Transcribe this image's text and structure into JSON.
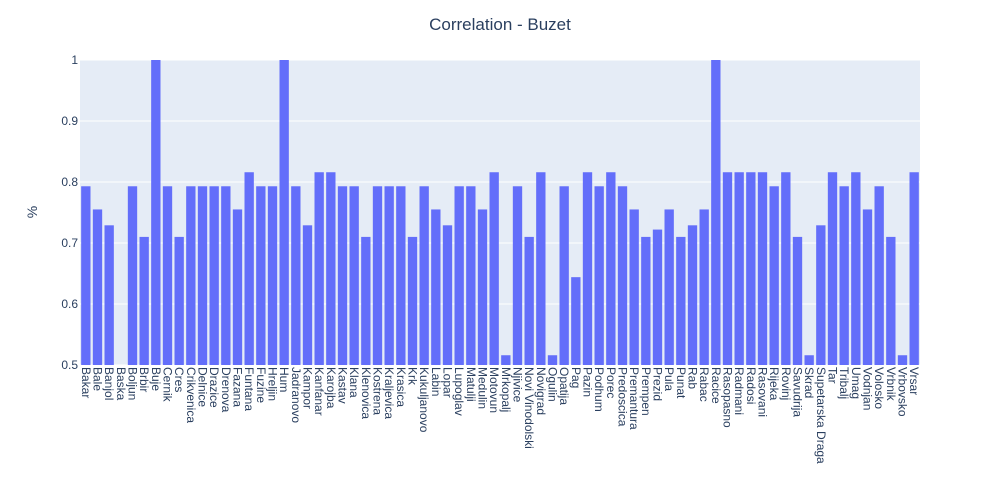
{
  "chart_data": {
    "type": "bar",
    "title": "Correlation - Buzet",
    "xlabel": "",
    "ylabel": "%",
    "ylim": [
      0.5,
      1.0
    ],
    "yticks": [
      "0.5",
      "0.6",
      "0.7",
      "0.8",
      "0.9",
      "1"
    ],
    "grid": true,
    "bar_color": "#636efa",
    "plot_bg": "#e5ecf6",
    "categories": [
      "Bakar",
      "Bale",
      "Banjol",
      "Baska",
      "Boljun",
      "Brbir",
      "Buje",
      "Cernik",
      "Cres",
      "Crikvenica",
      "Delnice",
      "Drazice",
      "Drenova",
      "Fazana",
      "Funtana",
      "Fuzine",
      "Hreljin",
      "Hum",
      "Jadranovo",
      "Kampor",
      "Kanfanar",
      "Karojba",
      "Kastav",
      "Klana",
      "Klenovica",
      "Kostrena",
      "Kraljevica",
      "Krasica",
      "Krk",
      "Kukuljanovo",
      "Labin",
      "Lopar",
      "Lupoglav",
      "Matulji",
      "Medulin",
      "Motovun",
      "Mrkopalj",
      "Njivice",
      "Novi Vinodolski",
      "Novigrad",
      "Ogulin",
      "Opatija",
      "Pag",
      "Pazin",
      "Podhum",
      "Porec",
      "Predoscica",
      "Premantura",
      "Prempen",
      "Prezid",
      "Pula",
      "Punat",
      "Rab",
      "Rabac",
      "Racice",
      "Rasopasno",
      "Radmani",
      "Radosi",
      "Rasovani",
      "Rijeka",
      "Rovinj",
      "Savudrija",
      "Skrad",
      "Supetarska Draga",
      "Tar",
      "Tribalj",
      "Umag",
      "Vodnjan",
      "Volosko",
      "Vrbnik",
      "Vrbovsko",
      "Vrsar"
    ],
    "values": [
      0.793,
      0.755,
      0.729,
      0.5,
      0.793,
      0.71,
      1.0,
      0.793,
      0.71,
      0.793,
      0.793,
      0.793,
      0.793,
      0.755,
      0.816,
      0.793,
      0.793,
      1.0,
      0.793,
      0.729,
      0.816,
      0.816,
      0.793,
      0.793,
      0.71,
      0.793,
      0.793,
      0.793,
      0.71,
      0.793,
      0.755,
      0.729,
      0.793,
      0.793,
      0.755,
      0.816,
      0.516,
      0.793,
      0.71,
      0.816,
      0.516,
      0.793,
      0.644,
      0.816,
      0.793,
      0.816,
      0.793,
      0.755,
      0.71,
      0.722,
      0.755,
      0.71,
      0.729,
      0.755,
      1.0,
      0.816,
      0.816,
      0.816,
      0.816,
      0.793,
      0.816,
      0.71,
      0.516,
      0.729,
      0.816,
      0.793,
      0.816,
      0.755,
      0.793,
      0.71,
      0.516,
      0.816
    ]
  }
}
